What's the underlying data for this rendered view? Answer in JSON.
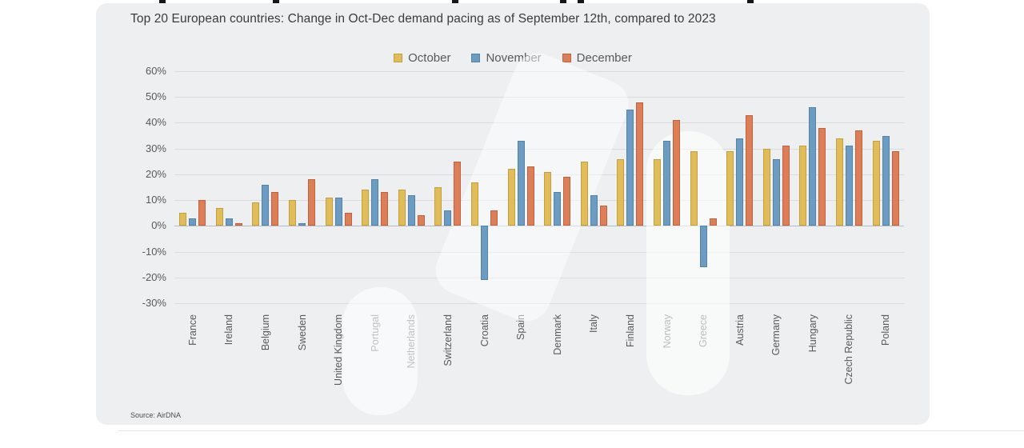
{
  "header": {
    "subtitle": "Top 20 European countries: Change in Oct-Dec demand pacing as of September 12th, compared to 2023"
  },
  "source": "Source: AirDNA",
  "chart_data": {
    "type": "bar",
    "title": "Top 20 European countries: Change in Oct-Dec demand pacing as of September 12th, compared to 2023",
    "categories": [
      "France",
      "Ireland",
      "Belgium",
      "Sweden",
      "United Kingdom",
      "Portugal",
      "Netherlands",
      "Switzerland",
      "Croatia",
      "Spain",
      "Denmark",
      "Italy",
      "Finland",
      "Norway",
      "Greece",
      "Austria",
      "Germany",
      "Hungary",
      "Czech Republic",
      "Poland"
    ],
    "series": [
      {
        "name": "October",
        "color": "#e0bd5a",
        "border": "#c2a13c",
        "values": [
          5,
          7,
          9,
          10,
          11,
          14,
          14,
          15,
          17,
          22,
          21,
          25,
          26,
          26,
          29,
          29,
          30,
          31,
          34,
          33
        ]
      },
      {
        "name": "November",
        "color": "#6d9cc3",
        "border": "#5583a8",
        "values": [
          3,
          3,
          16,
          1,
          11,
          18,
          12,
          6,
          -21,
          33,
          13,
          12,
          45,
          33,
          -16,
          34,
          26,
          46,
          31,
          35
        ]
      },
      {
        "name": "December",
        "color": "#dd7e58",
        "border": "#bf633e",
        "values": [
          10,
          1,
          13,
          18,
          5,
          13,
          4,
          25,
          6,
          23,
          19,
          8,
          48,
          41,
          3,
          43,
          31,
          38,
          37,
          29
        ]
      }
    ],
    "xlabel": "",
    "ylabel": "",
    "ylim": [
      -30,
      60
    ],
    "yticks": [
      60,
      50,
      40,
      30,
      20,
      10,
      0,
      -10,
      -20,
      -30
    ],
    "ytick_suffix": "%",
    "grid": true,
    "legend_position": "top-center"
  }
}
